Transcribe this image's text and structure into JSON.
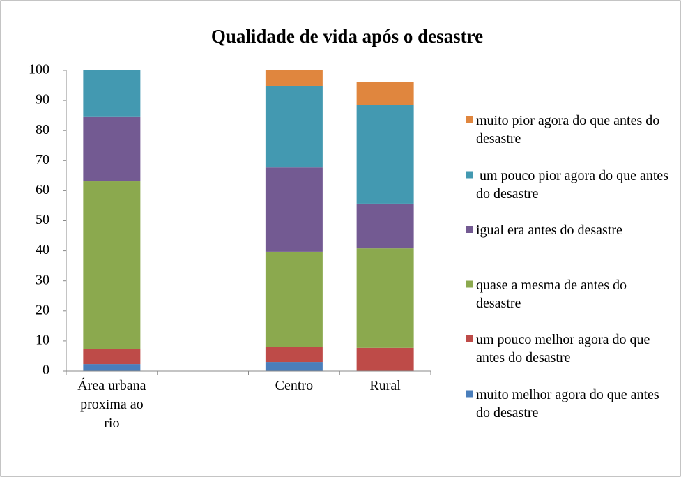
{
  "chart_data": {
    "type": "bar",
    "stacked": true,
    "title": "Qualidade de vida após o desastre",
    "categories": [
      "Área urbana proxima ao rio",
      null,
      "Centro",
      "Rural"
    ],
    "series": [
      {
        "name": "muito melhor agora do que antes do desastre",
        "color": "#4a7ebb",
        "values": [
          2.3,
          null,
          3,
          0
        ]
      },
      {
        "name": "um pouco melhor agora do que antes do desastre",
        "color": "#be4b48",
        "values": [
          5.1,
          null,
          5.1,
          7.7
        ]
      },
      {
        "name": "quase a mesma de antes do desastre",
        "color": "#8ba94e",
        "values": [
          55.7,
          null,
          31.6,
          33.1
        ]
      },
      {
        "name": "igual era antes do desastre",
        "color": "#735a92",
        "values": [
          21.4,
          null,
          28,
          14.9
        ]
      },
      {
        "name": " um pouco pior agora do que antes do desastre",
        "color": "#4399b1",
        "values": [
          15.5,
          null,
          27.2,
          32.9
        ]
      },
      {
        "name": "muito pior agora do que antes do desastre",
        "color": "#e0863e",
        "values": [
          0,
          null,
          5.1,
          7.5
        ]
      }
    ],
    "ylim": [
      0,
      100
    ],
    "yticks": [
      0,
      10,
      20,
      30,
      40,
      50,
      60,
      70,
      80,
      90,
      100
    ],
    "grid": false,
    "legend": "right"
  }
}
